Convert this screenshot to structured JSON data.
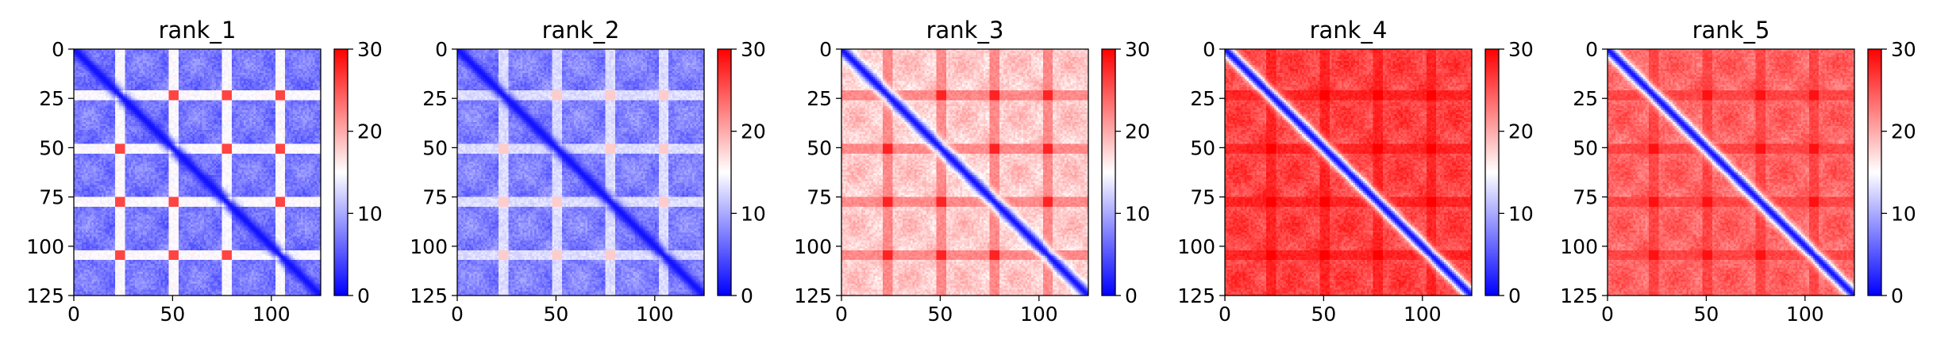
{
  "chart_data": [
    {
      "type": "heatmap",
      "title": "rank_1",
      "xlim": [
        0,
        125
      ],
      "ylim": [
        125,
        0
      ],
      "x_ticks": [
        0,
        50,
        100
      ],
      "y_ticks": [
        0,
        25,
        50,
        75,
        100,
        125
      ],
      "colorbar": {
        "min": 0,
        "max": 30,
        "ticks": [
          0,
          10,
          20,
          30
        ],
        "colormap": "bwr"
      },
      "pattern": {
        "diag_level": 1,
        "base_level": 7,
        "line_positions": [
          23,
          50,
          77,
          104
        ],
        "line_level": 15,
        "spot_level": 26
      }
    },
    {
      "type": "heatmap",
      "title": "rank_2",
      "xlim": [
        0,
        125
      ],
      "ylim": [
        125,
        0
      ],
      "x_ticks": [
        0,
        50,
        100
      ],
      "y_ticks": [
        0,
        25,
        50,
        75,
        100,
        125
      ],
      "colorbar": {
        "min": 0,
        "max": 30,
        "ticks": [
          0,
          10,
          20,
          30
        ],
        "colormap": "bwr"
      },
      "pattern": {
        "diag_level": 1,
        "base_level": 7.5,
        "line_positions": [
          23,
          50,
          77,
          104
        ],
        "line_level": 13,
        "spot_level": 18
      }
    },
    {
      "type": "heatmap",
      "title": "rank_3",
      "xlim": [
        0,
        125
      ],
      "ylim": [
        125,
        0
      ],
      "x_ticks": [
        0,
        50,
        100
      ],
      "y_ticks": [
        0,
        25,
        50,
        75,
        100,
        125
      ],
      "colorbar": {
        "min": 0,
        "max": 30,
        "ticks": [
          0,
          10,
          20,
          30
        ],
        "colormap": "bwr"
      },
      "pattern": {
        "diag_level": 1,
        "base_level": 18,
        "line_positions": [
          23,
          50,
          77,
          104
        ],
        "line_level": 22,
        "spot_level": 28
      }
    },
    {
      "type": "heatmap",
      "title": "rank_4",
      "xlim": [
        0,
        125
      ],
      "ylim": [
        125,
        0
      ],
      "x_ticks": [
        0,
        50,
        100
      ],
      "y_ticks": [
        0,
        25,
        50,
        75,
        100,
        125
      ],
      "colorbar": {
        "min": 0,
        "max": 30,
        "ticks": [
          0,
          10,
          20,
          30
        ],
        "colormap": "bwr"
      },
      "pattern": {
        "diag_level": 1,
        "base_level": 26,
        "line_positions": [
          23,
          50,
          77,
          104
        ],
        "line_level": 28,
        "spot_level": 30
      }
    },
    {
      "type": "heatmap",
      "title": "rank_5",
      "xlim": [
        0,
        125
      ],
      "ylim": [
        125,
        0
      ],
      "x_ticks": [
        0,
        50,
        100
      ],
      "y_ticks": [
        0,
        25,
        50,
        75,
        100,
        125
      ],
      "colorbar": {
        "min": 0,
        "max": 30,
        "ticks": [
          0,
          10,
          20,
          30
        ],
        "colormap": "bwr"
      },
      "pattern": {
        "diag_level": 1,
        "base_level": 24,
        "line_positions": [
          23,
          50,
          77,
          104
        ],
        "line_level": 26,
        "spot_level": 29
      }
    }
  ]
}
